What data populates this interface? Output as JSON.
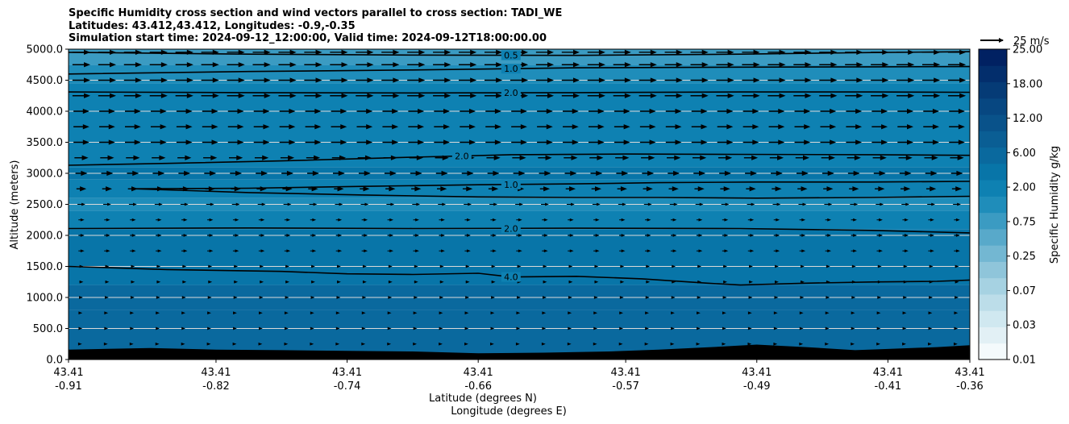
{
  "title_lines": [
    "Specific Humidity cross section and wind vectors parallel to cross section: TADI_WE",
    "Latitudes: 43.412,43.412, Longitudes: -0.9,-0.35",
    "Simulation start time: 2024-09-12_12:00:00, Valid time: 2024-09-12T18:00:00.00"
  ],
  "chart_data": {
    "type": "heatmap",
    "title": "Specific Humidity cross section and wind vectors parallel to cross section: TADI_WE",
    "ylabel": "Altitude (meters)",
    "xlabel": "Latitude (degrees N)",
    "xlabel2": "Longitude (degrees E)",
    "ylim": [
      0,
      5000
    ],
    "yticks": [
      "0.0",
      "500.0",
      "1000.0",
      "1500.0",
      "2000.0",
      "2500.0",
      "3000.0",
      "3500.0",
      "4000.0",
      "4500.0",
      "5000.0"
    ],
    "xtick_labels": [
      [
        "43.41",
        "-0.91"
      ],
      [
        "43.41",
        "-0.82"
      ],
      [
        "43.41",
        "-0.74"
      ],
      [
        "43.41",
        "-0.66"
      ],
      [
        "43.41",
        "-0.57"
      ],
      [
        "43.41",
        "-0.49"
      ],
      [
        "43.41",
        "-0.41"
      ],
      [
        "43.41",
        "-0.36"
      ]
    ],
    "xtick_lons": [
      -0.91,
      -0.82,
      -0.74,
      -0.66,
      -0.57,
      -0.49,
      -0.41,
      -0.36
    ],
    "xlim": [
      -0.91,
      -0.36
    ],
    "grid": "horizontal",
    "colorbar": {
      "label": "Specific Humidity g/kg",
      "tick_labels": [
        "0.01",
        "0.03",
        "0.07",
        "0.25",
        "0.75",
        "2.00",
        "6.00",
        "12.00",
        "18.00",
        "25.00"
      ],
      "levels": [
        0.01,
        0.02,
        0.03,
        0.05,
        0.07,
        0.1,
        0.25,
        0.5,
        0.75,
        1.0,
        2.0,
        3.0,
        6.0,
        8.0,
        12.0,
        14.0,
        18.0,
        20.0,
        25.0
      ],
      "colors": [
        "#f4fafc",
        "#e2f0f5",
        "#d0e8f0",
        "#bcdde9",
        "#a6d2e2",
        "#8fc5da",
        "#73b7d2",
        "#58a9ca",
        "#3b9bc2",
        "#1f8dba",
        "#0e81b2",
        "#0875a8",
        "#0a699e",
        "#0a5e94",
        "#09528a",
        "#074781",
        "#053b76",
        "#032e6c",
        "#012162"
      ]
    },
    "terrain_color": "#000000",
    "vector_key": {
      "label": "25 m/s",
      "speed": 25
    },
    "contours": [
      {
        "label": "0.5",
        "label_lon": -0.64,
        "points": [
          [
            -0.91,
            4950
          ],
          [
            -0.8,
            4920
          ],
          [
            -0.7,
            4905
          ],
          [
            -0.6,
            4900
          ],
          [
            -0.5,
            4920
          ],
          [
            -0.42,
            4945
          ],
          [
            -0.36,
            4960
          ]
        ]
      },
      {
        "label": "1.0",
        "label_lon": -0.64,
        "points": [
          [
            -0.91,
            4600
          ],
          [
            -0.8,
            4640
          ],
          [
            -0.7,
            4665
          ],
          [
            -0.6,
            4700
          ],
          [
            -0.5,
            4710
          ],
          [
            -0.42,
            4715
          ],
          [
            -0.36,
            4720
          ]
        ]
      },
      {
        "label": "2.0",
        "label_lon": -0.64,
        "points": [
          [
            -0.91,
            4310
          ],
          [
            -0.8,
            4300
          ],
          [
            -0.7,
            4295
          ],
          [
            -0.6,
            4300
          ],
          [
            -0.5,
            4310
          ],
          [
            -0.42,
            4310
          ],
          [
            -0.36,
            4305
          ]
        ]
      },
      {
        "label": "2.0",
        "label_lon": -0.67,
        "points": [
          [
            -0.91,
            3130
          ],
          [
            -0.85,
            3160
          ],
          [
            -0.78,
            3200
          ],
          [
            -0.7,
            3260
          ],
          [
            -0.64,
            3300
          ],
          [
            -0.57,
            3310
          ],
          [
            -0.5,
            3305
          ],
          [
            -0.42,
            3300
          ],
          [
            -0.36,
            3290
          ]
        ]
      },
      {
        "label": "1.0",
        "label_lon": -0.64,
        "points": [
          [
            -0.87,
            2750
          ],
          [
            -0.8,
            2760
          ],
          [
            -0.73,
            2790
          ],
          [
            -0.66,
            2815
          ],
          [
            -0.6,
            2830
          ],
          [
            -0.55,
            2850
          ],
          [
            -0.49,
            2860
          ],
          [
            -0.42,
            2860
          ],
          [
            -0.36,
            2870
          ]
        ]
      },
      {
        "label": "",
        "label_lon": null,
        "points": [
          [
            -0.87,
            2750
          ],
          [
            -0.8,
            2690
          ],
          [
            -0.73,
            2650
          ],
          [
            -0.66,
            2620
          ],
          [
            -0.6,
            2610
          ],
          [
            -0.55,
            2610
          ],
          [
            -0.49,
            2600
          ],
          [
            -0.42,
            2610
          ],
          [
            -0.36,
            2630
          ]
        ]
      },
      {
        "label": "2.0",
        "label_lon": -0.64,
        "points": [
          [
            -0.91,
            2110
          ],
          [
            -0.8,
            2120
          ],
          [
            -0.7,
            2110
          ],
          [
            -0.6,
            2115
          ],
          [
            -0.5,
            2110
          ],
          [
            -0.42,
            2080
          ],
          [
            -0.36,
            2040
          ]
        ]
      },
      {
        "label": "4.0",
        "label_lon": -0.64,
        "points": [
          [
            -0.91,
            1500
          ],
          [
            -0.85,
            1450
          ],
          [
            -0.78,
            1420
          ],
          [
            -0.74,
            1380
          ],
          [
            -0.7,
            1370
          ],
          [
            -0.66,
            1390
          ],
          [
            -0.64,
            1330
          ],
          [
            -0.6,
            1340
          ],
          [
            -0.56,
            1300
          ],
          [
            -0.52,
            1230
          ],
          [
            -0.5,
            1200
          ],
          [
            -0.46,
            1230
          ],
          [
            -0.42,
            1250
          ],
          [
            -0.38,
            1260
          ],
          [
            -0.36,
            1280
          ]
        ]
      }
    ],
    "terrain_m": [
      [
        -0.91,
        160
      ],
      [
        -0.86,
        185
      ],
      [
        -0.82,
        160
      ],
      [
        -0.78,
        150
      ],
      [
        -0.74,
        140
      ],
      [
        -0.7,
        130
      ],
      [
        -0.66,
        100
      ],
      [
        -0.62,
        110
      ],
      [
        -0.58,
        130
      ],
      [
        -0.55,
        160
      ],
      [
        -0.51,
        210
      ],
      [
        -0.49,
        240
      ],
      [
        -0.46,
        200
      ],
      [
        -0.43,
        150
      ],
      [
        -0.41,
        170
      ],
      [
        -0.38,
        200
      ],
      [
        -0.36,
        230
      ]
    ],
    "background_layers": [
      {
        "altitude": 5000,
        "q": 0.75
      },
      {
        "altitude": 4750,
        "q": 1.0
      },
      {
        "altitude": 4450,
        "q": 2.0
      },
      {
        "altitude": 3100,
        "q": 3.0
      },
      {
        "altitude": 2900,
        "q": 2.0
      },
      {
        "altitude": 2600,
        "q": 1.5
      },
      {
        "altitude": 2400,
        "q": 2.5
      },
      {
        "altitude": 2100,
        "q": 3.5
      },
      {
        "altitude": 1500,
        "q": 5.0
      },
      {
        "altitude": 1200,
        "q": 6.5
      },
      {
        "altitude": 800,
        "q": 7.5
      }
    ],
    "wind_vector_rows_m": [
      4950,
      4750,
      4500,
      4250,
      4000,
      3750,
      3500,
      3250,
      3000,
      2750,
      2500,
      2250,
      2000,
      1750,
      1500,
      1250,
      1000,
      750,
      500,
      250
    ],
    "wind_vector_columns": 35,
    "wind_speed_by_row_ms": [
      9,
      9,
      9,
      9,
      8,
      8,
      8,
      7,
      6,
      5,
      4,
      3,
      3,
      3,
      2,
      2,
      1.5,
      1,
      1,
      0.5
    ]
  }
}
